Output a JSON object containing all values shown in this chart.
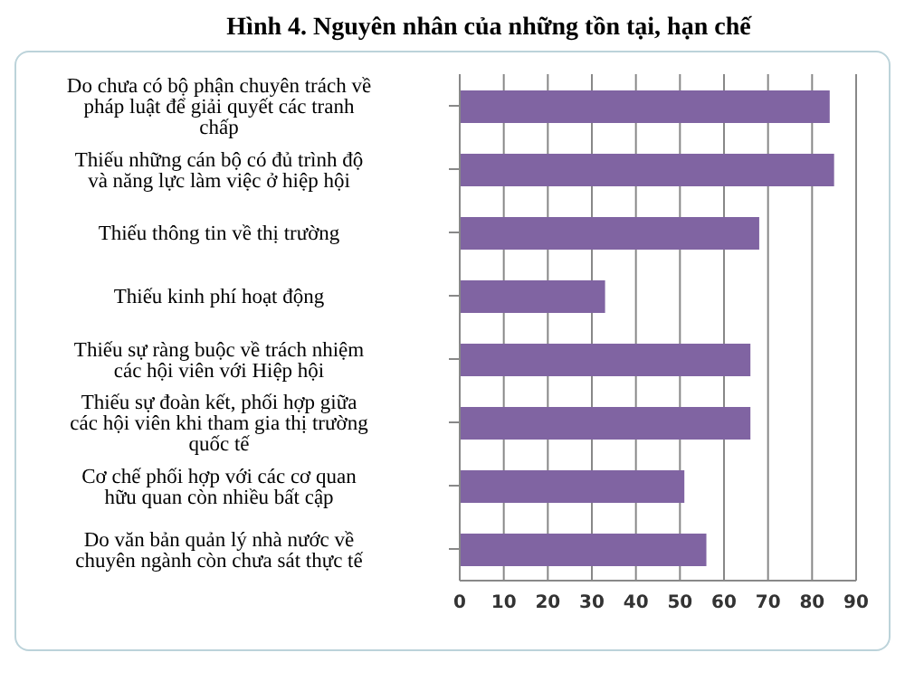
{
  "chart_data": {
    "type": "bar",
    "orientation": "horizontal",
    "title": "Hình 4. Nguyên nhân của những tồn tại, hạn chế",
    "categories": [
      "Do chưa có bộ phận chuyên trách về pháp luật để giải quyết các tranh chấp",
      "Thiếu những cán bộ có đủ trình độ và năng lực làm việc ở hiệp hội",
      "Thiếu thông tin về thị trường",
      "Thiếu kinh phí hoạt động",
      "Thiếu sự ràng buộc về trách nhiệm các hội viên với Hiệp hội",
      "Thiếu sự đoàn kết, phối hợp giữa các hội viên khi tham gia thị trường quốc tế",
      "Cơ chế phối hợp với các cơ quan hữu quan còn nhiều bất cập",
      "Do văn bản quản lý nhà nước về chuyên ngành còn chưa sát thực tế"
    ],
    "values": [
      84,
      85,
      68,
      33,
      66,
      66,
      51,
      56
    ],
    "color": "#8064a2",
    "xlim": [
      0,
      90
    ],
    "xticks": [
      0,
      10,
      20,
      30,
      40,
      50,
      60,
      70,
      80,
      90
    ],
    "grid": "x"
  }
}
